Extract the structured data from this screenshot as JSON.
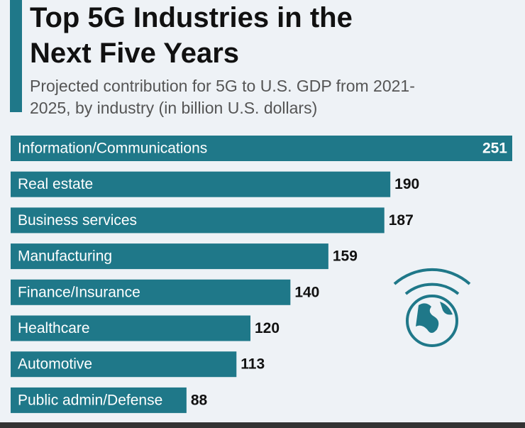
{
  "chart_data": {
    "type": "bar",
    "orientation": "horizontal",
    "title": "Top 5G Industries in the Next Five Years",
    "subtitle": "Projected contribution for 5G to U.S. GDP from 2021-2025, by industry (in billion U.S. dollars)",
    "categories": [
      "Information/Communications",
      "Real estate",
      "Business services",
      "Manufacturing",
      "Finance/Insurance",
      "Healthcare",
      "Automotive",
      "Public admin/Defense"
    ],
    "values": [
      251,
      190,
      187,
      159,
      140,
      120,
      113,
      88
    ],
    "color": "#1f7889"
  }
}
